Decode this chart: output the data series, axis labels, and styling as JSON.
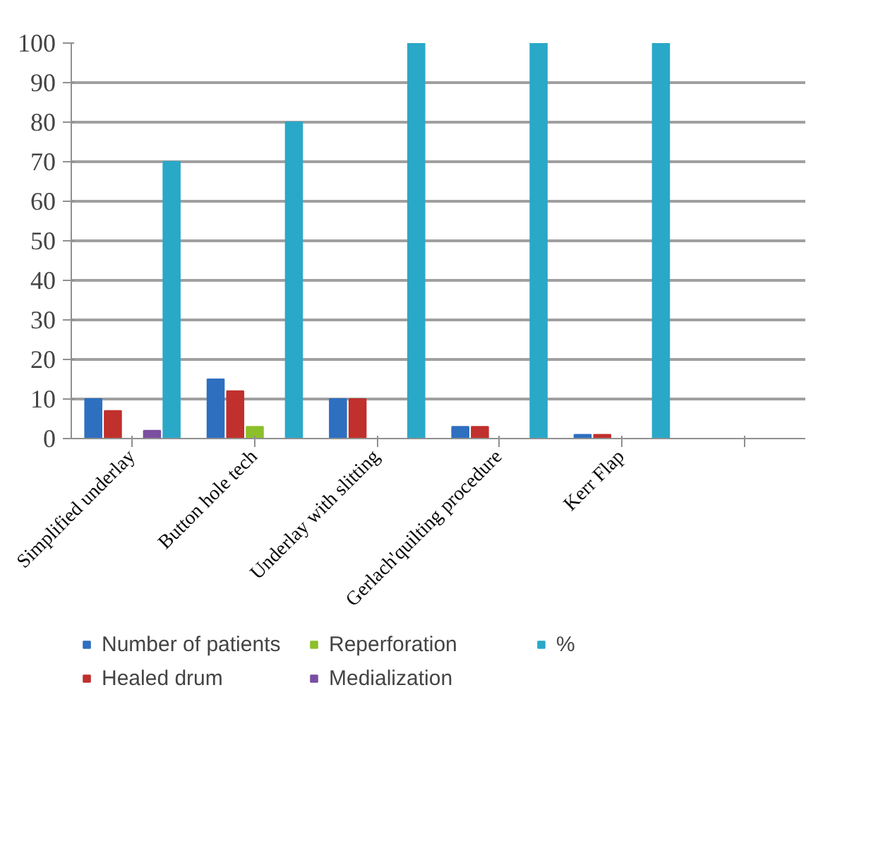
{
  "chart_data": {
    "type": "bar",
    "categories": [
      "Simplified underlay",
      "Button hole tech",
      "Underlay with slitting",
      "Gerlach'quilting procedure",
      "Kerr Flap",
      null
    ],
    "series": [
      {
        "name": "Number of patients",
        "color": "#2e6fc0",
        "values": [
          10,
          15,
          10,
          3,
          1,
          null
        ]
      },
      {
        "name": "Healed drum",
        "color": "#c0302c",
        "values": [
          7,
          12,
          10,
          3,
          1,
          null
        ]
      },
      {
        "name": "Reperforation",
        "color": "#8cbf2a",
        "values": [
          0,
          3,
          0,
          0,
          0,
          null
        ]
      },
      {
        "name": "Medialization",
        "color": "#7a4ea0",
        "values": [
          2,
          null,
          null,
          null,
          null,
          null
        ]
      },
      {
        "name": "%",
        "color": "#2aa8c8",
        "values": [
          70,
          80,
          100,
          100,
          100,
          null
        ]
      }
    ],
    "ylim": [
      0,
      100
    ],
    "yticks": [
      0,
      10,
      20,
      30,
      40,
      50,
      60,
      70,
      80,
      90,
      100
    ],
    "grid": "y",
    "legend": "bottom"
  }
}
